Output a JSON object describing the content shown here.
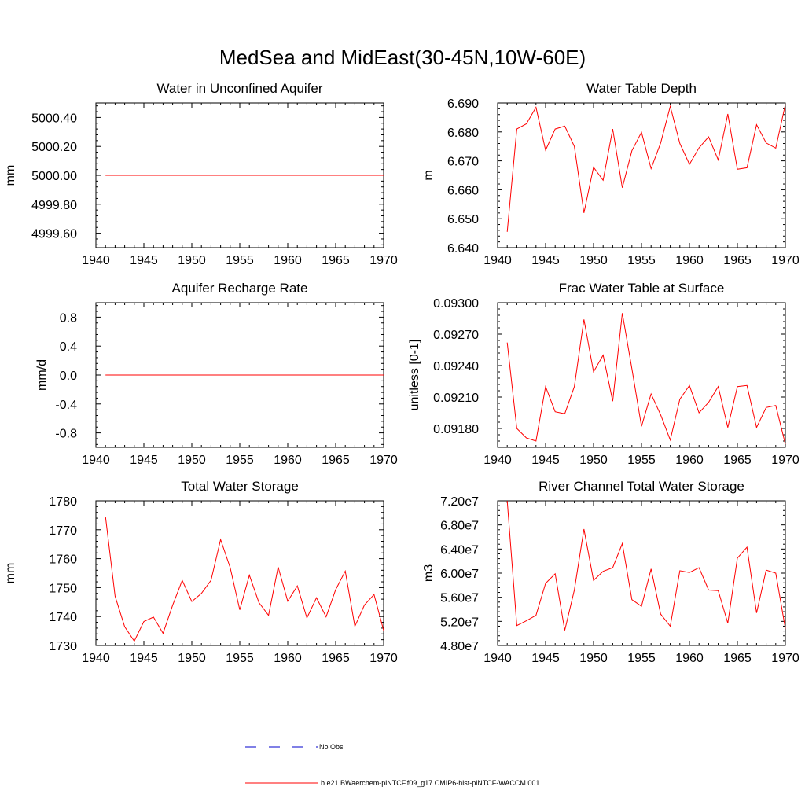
{
  "figure": {
    "title": "MedSea and MidEast(30-45N,10W-60E)"
  },
  "colors": {
    "model": "#ff0000",
    "obs": "#0000cc",
    "axis": "#000000"
  },
  "legend": {
    "items": [
      {
        "label": "No Obs",
        "style": "dashed",
        "color": "#0000cc"
      },
      {
        "label": "b.e21.BWaerchem-piNTCF.f09_g17.CMIP6-hist-piNTCF-WACCM.001",
        "style": "solid",
        "color": "#ff0000"
      }
    ]
  },
  "chart_data": [
    {
      "type": "line",
      "title": "Water in Unconfined Aquifer",
      "ylabel": "mm",
      "xlim": [
        1940,
        1970
      ],
      "ylim": [
        4999.5,
        5000.5
      ],
      "xticks": [
        1940,
        1945,
        1950,
        1955,
        1960,
        1965,
        1970
      ],
      "xtick_labels": [
        "1940",
        "1945",
        "1950",
        "1955",
        "1960",
        "1965",
        "1970"
      ],
      "yticks": [
        4999.6,
        4999.8,
        5000.0,
        5000.2,
        5000.4
      ],
      "ytick_labels": [
        "4999.60",
        "4999.80",
        "5000.00",
        "5000.20",
        "5000.40"
      ],
      "x": [
        1941,
        1942,
        1943,
        1944,
        1945,
        1946,
        1947,
        1948,
        1949,
        1950,
        1951,
        1952,
        1953,
        1954,
        1955,
        1956,
        1957,
        1958,
        1959,
        1960,
        1961,
        1962,
        1963,
        1964,
        1965,
        1966,
        1967,
        1968,
        1969,
        1970
      ],
      "y": [
        5000,
        5000,
        5000,
        5000,
        5000,
        5000,
        5000,
        5000,
        5000,
        5000,
        5000,
        5000,
        5000,
        5000,
        5000,
        5000,
        5000,
        5000,
        5000,
        5000,
        5000,
        5000,
        5000,
        5000,
        5000,
        5000,
        5000,
        5000,
        5000,
        5000
      ]
    },
    {
      "type": "line",
      "title": "Water Table Depth",
      "ylabel": "m",
      "xlim": [
        1940,
        1970
      ],
      "ylim": [
        6.64,
        6.69
      ],
      "xticks": [
        1940,
        1945,
        1950,
        1955,
        1960,
        1965,
        1970
      ],
      "xtick_labels": [
        "1940",
        "1945",
        "1950",
        "1955",
        "1960",
        "1965",
        "1970"
      ],
      "yticks": [
        6.64,
        6.65,
        6.66,
        6.67,
        6.68,
        6.69
      ],
      "ytick_labels": [
        "6.640",
        "6.650",
        "6.660",
        "6.670",
        "6.680",
        "6.690"
      ],
      "x": [
        1941,
        1942,
        1943,
        1944,
        1945,
        1946,
        1947,
        1948,
        1949,
        1950,
        1951,
        1952,
        1953,
        1954,
        1955,
        1956,
        1957,
        1958,
        1959,
        1960,
        1961,
        1962,
        1963,
        1964,
        1965,
        1966,
        1967,
        1968,
        1969,
        1970
      ],
      "y": [
        6.6455,
        6.681,
        6.6828,
        6.6885,
        6.6737,
        6.681,
        6.682,
        6.675,
        6.652,
        6.6678,
        6.6633,
        6.681,
        6.6607,
        6.6735,
        6.6799,
        6.6673,
        6.6762,
        6.6888,
        6.676,
        6.6688,
        6.6745,
        6.6783,
        6.6703,
        6.6862,
        6.6671,
        6.6676,
        6.6825,
        6.6762,
        6.6744,
        6.6895
      ]
    },
    {
      "type": "line",
      "title": "Aquifer Recharge Rate",
      "ylabel": "mm/d",
      "xlim": [
        1940,
        1970
      ],
      "ylim": [
        -1.0,
        1.0
      ],
      "xticks": [
        1940,
        1945,
        1950,
        1955,
        1960,
        1965,
        1970
      ],
      "xtick_labels": [
        "1940",
        "1945",
        "1950",
        "1955",
        "1960",
        "1965",
        "1970"
      ],
      "yticks": [
        -0.8,
        -0.4,
        0.0,
        0.4,
        0.8
      ],
      "ytick_labels": [
        "-0.8",
        "-0.4",
        "0.0",
        "0.4",
        "0.8"
      ],
      "x": [
        1941,
        1942,
        1943,
        1944,
        1945,
        1946,
        1947,
        1948,
        1949,
        1950,
        1951,
        1952,
        1953,
        1954,
        1955,
        1956,
        1957,
        1958,
        1959,
        1960,
        1961,
        1962,
        1963,
        1964,
        1965,
        1966,
        1967,
        1968,
        1969,
        1970
      ],
      "y": [
        0,
        0,
        0,
        0,
        0,
        0,
        0,
        0,
        0,
        0,
        0,
        0,
        0,
        0,
        0,
        0,
        0,
        0,
        0,
        0,
        0,
        0,
        0,
        0,
        0,
        0,
        0,
        0,
        0,
        0
      ]
    },
    {
      "type": "line",
      "title": "Frac Water Table at Surface",
      "ylabel": "unitless [0-1]",
      "xlim": [
        1940,
        1970
      ],
      "ylim": [
        0.09162,
        0.093
      ],
      "xticks": [
        1940,
        1945,
        1950,
        1955,
        1960,
        1965,
        1970
      ],
      "xtick_labels": [
        "1940",
        "1945",
        "1950",
        "1955",
        "1960",
        "1965",
        "1970"
      ],
      "yticks": [
        0.0918,
        0.0921,
        0.0924,
        0.0927,
        0.093
      ],
      "ytick_labels": [
        "0.09180",
        "0.09210",
        "0.09240",
        "0.09270",
        "0.09300"
      ],
      "x": [
        1941,
        1942,
        1943,
        1944,
        1945,
        1946,
        1947,
        1948,
        1949,
        1950,
        1951,
        1952,
        1953,
        1954,
        1955,
        1956,
        1957,
        1958,
        1959,
        1960,
        1961,
        1962,
        1963,
        1964,
        1965,
        1966,
        1967,
        1968,
        1969,
        1970
      ],
      "y": [
        0.09262,
        0.0918,
        0.09171,
        0.09168,
        0.0922,
        0.09196,
        0.09194,
        0.0922,
        0.09284,
        0.09234,
        0.0925,
        0.09206,
        0.0929,
        0.09237,
        0.09182,
        0.09213,
        0.09193,
        0.09169,
        0.09208,
        0.09221,
        0.09195,
        0.09205,
        0.0922,
        0.09181,
        0.0922,
        0.09221,
        0.09181,
        0.092,
        0.09202,
        0.09165
      ]
    },
    {
      "type": "line",
      "title": "Total Water Storage",
      "ylabel": "mm",
      "xlim": [
        1940,
        1970
      ],
      "ylim": [
        1730,
        1780
      ],
      "xticks": [
        1940,
        1945,
        1950,
        1955,
        1960,
        1965,
        1970
      ],
      "xtick_labels": [
        "1940",
        "1945",
        "1950",
        "1955",
        "1960",
        "1965",
        "1970"
      ],
      "yticks": [
        1730,
        1740,
        1750,
        1760,
        1770,
        1780
      ],
      "ytick_labels": [
        "1730",
        "1740",
        "1750",
        "1760",
        "1770",
        "1780"
      ],
      "x": [
        1941,
        1942,
        1943,
        1944,
        1945,
        1946,
        1947,
        1948,
        1949,
        1950,
        1951,
        1952,
        1953,
        1954,
        1955,
        1956,
        1957,
        1958,
        1959,
        1960,
        1961,
        1962,
        1963,
        1964,
        1965,
        1966,
        1967,
        1968,
        1969,
        1970
      ],
      "y": [
        1774.5,
        1747.0,
        1736.5,
        1731.5,
        1738.3,
        1739.8,
        1734.2,
        1743.9,
        1752.5,
        1745.2,
        1748.0,
        1752.5,
        1766.6,
        1756.9,
        1742.3,
        1754.3,
        1744.8,
        1740.4,
        1757.1,
        1745.3,
        1750.6,
        1739.5,
        1746.5,
        1739.9,
        1749.3,
        1755.7,
        1736.6,
        1744.0,
        1747.6,
        1735.2
      ]
    },
    {
      "type": "line",
      "title": "River Channel Total Water Storage",
      "ylabel": "m3",
      "xlim": [
        1940,
        1970
      ],
      "ylim": [
        48000000,
        72000000
      ],
      "xticks": [
        1940,
        1945,
        1950,
        1955,
        1960,
        1965,
        1970
      ],
      "xtick_labels": [
        "1940",
        "1945",
        "1950",
        "1955",
        "1960",
        "1965",
        "1970"
      ],
      "yticks": [
        48000000,
        52000000,
        56000000,
        60000000,
        64000000,
        68000000,
        72000000
      ],
      "ytick_labels": [
        "4.80e7",
        "5.20e7",
        "5.60e7",
        "6.00e7",
        "6.40e7",
        "6.80e7",
        "7.20e7"
      ],
      "x": [
        1941,
        1942,
        1943,
        1944,
        1945,
        1946,
        1947,
        1948,
        1949,
        1950,
        1951,
        1952,
        1953,
        1954,
        1955,
        1956,
        1957,
        1958,
        1959,
        1960,
        1961,
        1962,
        1963,
        1964,
        1965,
        1966,
        1967,
        1968,
        1969,
        1970
      ],
      "y": [
        72000000,
        51300000,
        52100000,
        53000000,
        58300000,
        59900000,
        50500000,
        57200000,
        67300000,
        58800000,
        60300000,
        60900000,
        64900000,
        55600000,
        54500000,
        60700000,
        53200000,
        51200000,
        60400000,
        60100000,
        60900000,
        57200000,
        57100000,
        51700000,
        62500000,
        64300000,
        53400000,
        60500000,
        60000000,
        50800000
      ]
    }
  ]
}
